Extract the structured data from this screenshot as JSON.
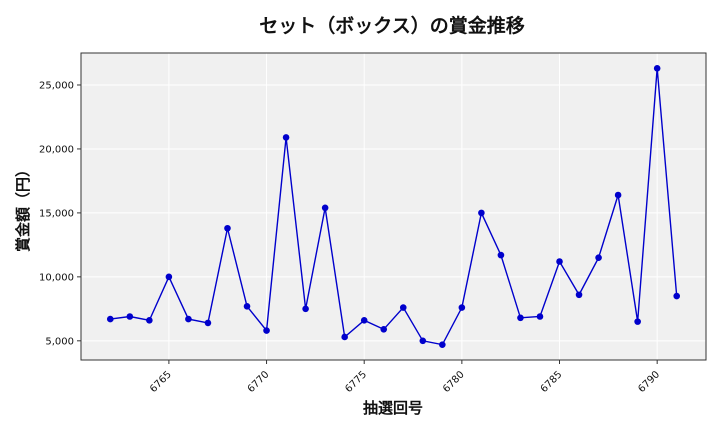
{
  "chart_data": {
    "type": "line",
    "title": "セット（ボックス）の賞金推移",
    "xlabel": "抽選回号",
    "ylabel": "賞金額（円）",
    "x": [
      6762,
      6763,
      6764,
      6765,
      6766,
      6767,
      6768,
      6769,
      6770,
      6771,
      6772,
      6773,
      6774,
      6775,
      6776,
      6777,
      6778,
      6779,
      6780,
      6781,
      6782,
      6783,
      6784,
      6785,
      6786,
      6787,
      6788,
      6789,
      6790,
      6791
    ],
    "series": [
      {
        "values": [
          6700,
          6900,
          6600,
          10000,
          6700,
          6400,
          13800,
          7700,
          5800,
          20900,
          7500,
          15400,
          5300,
          6600,
          5900,
          7600,
          5000,
          4700,
          7600,
          15000,
          11700,
          6800,
          6900,
          11200,
          8600,
          11500,
          16400,
          6500,
          26300,
          8500
        ],
        "color": "#0000cc"
      }
    ],
    "xlim": [
      6760.5,
      6792.5
    ],
    "ylim": [
      3500,
      27500
    ],
    "xticks": [
      6765,
      6770,
      6775,
      6780,
      6785,
      6790
    ],
    "yticks": [
      5000,
      10000,
      15000,
      20000,
      25000
    ],
    "ytick_labels": [
      "5,000",
      "10,000",
      "15,000",
      "20,000",
      "25,000"
    ],
    "grid": true,
    "plot_background": "#f0f0f0",
    "grid_color": "#ffffff"
  }
}
